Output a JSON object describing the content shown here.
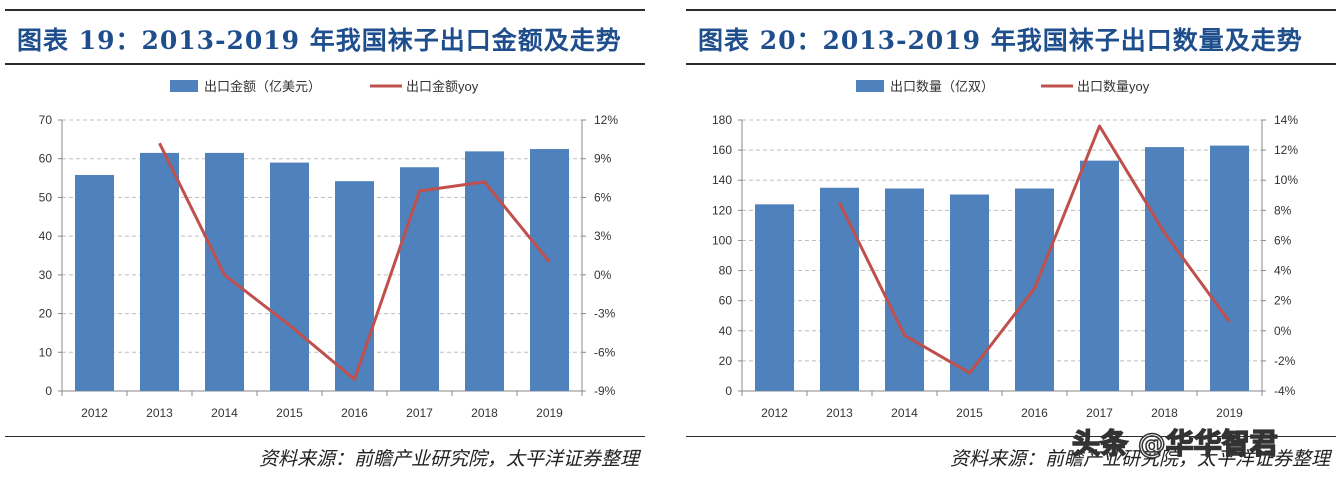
{
  "left": {
    "title": "图表 19：2013-2019 年我国袜子出口金额及走势",
    "source": "资料来源：前瞻产业研究院，太平洋证券整理"
  },
  "right": {
    "title": "图表 20：2013-2019 年我国袜子出口数量及走势",
    "source": "资料来源：前瞻产业研究院，太平洋证券整理"
  },
  "watermark": "头条 @华华智君",
  "colors": {
    "bar": "#4f81bd",
    "line": "#c0504d",
    "title": "#1f4e8c"
  },
  "chart_data": [
    {
      "type": "bar",
      "categories": [
        "2012",
        "2013",
        "2014",
        "2015",
        "2016",
        "2017",
        "2018",
        "2019"
      ],
      "series": [
        {
          "name": "出口金额（亿美元）",
          "type": "bar",
          "axis": "left",
          "values": [
            55.8,
            61.5,
            61.5,
            59,
            54.2,
            57.8,
            61.9,
            62.5
          ]
        },
        {
          "name": "出口金额yoy",
          "type": "line",
          "axis": "right",
          "values": [
            null,
            10.2,
            0,
            -3.9,
            -8.1,
            6.5,
            7.2,
            1
          ]
        }
      ],
      "y_left": {
        "ticks": [
          0,
          10,
          20,
          30,
          40,
          50,
          60,
          70
        ],
        "tick_labels": [
          "0",
          "10",
          "20",
          "30",
          "40",
          "50",
          "60",
          "70"
        ],
        "range": [
          0,
          70
        ]
      },
      "y_right": {
        "ticks": [
          -9,
          -6,
          -3,
          0,
          3,
          6,
          9,
          12
        ],
        "tick_labels": [
          "-9%",
          "-6%",
          "-3%",
          "0%",
          "3%",
          "6%",
          "9%",
          "12%"
        ],
        "range": [
          -9,
          12
        ]
      },
      "grid": "horizontal dashed",
      "legend": "top"
    },
    {
      "type": "bar",
      "categories": [
        "2012",
        "2013",
        "2014",
        "2015",
        "2016",
        "2017",
        "2018",
        "2019"
      ],
      "series": [
        {
          "name": "出口数量（亿双）",
          "type": "bar",
          "axis": "left",
          "values": [
            124,
            135,
            134.5,
            130.5,
            134.5,
            153,
            162,
            163
          ]
        },
        {
          "name": "出口数量yoy",
          "type": "line",
          "axis": "right",
          "values": [
            null,
            8.5,
            -0.3,
            -2.8,
            2.8,
            13.6,
            6.5,
            0.6
          ]
        }
      ],
      "y_left": {
        "ticks": [
          0,
          20,
          40,
          60,
          80,
          100,
          120,
          140,
          160,
          180
        ],
        "tick_labels": [
          "0",
          "20",
          "40",
          "60",
          "80",
          "100",
          "120",
          "140",
          "160",
          "180"
        ],
        "range": [
          0,
          180
        ]
      },
      "y_right": {
        "ticks": [
          -4,
          -2,
          0,
          2,
          4,
          6,
          8,
          10,
          12,
          14
        ],
        "tick_labels": [
          "-4%",
          "-2%",
          "0%",
          "2%",
          "4%",
          "6%",
          "8%",
          "10%",
          "12%",
          "14%"
        ],
        "range": [
          -4,
          14
        ]
      },
      "grid": "horizontal dashed",
      "legend": "top"
    }
  ]
}
